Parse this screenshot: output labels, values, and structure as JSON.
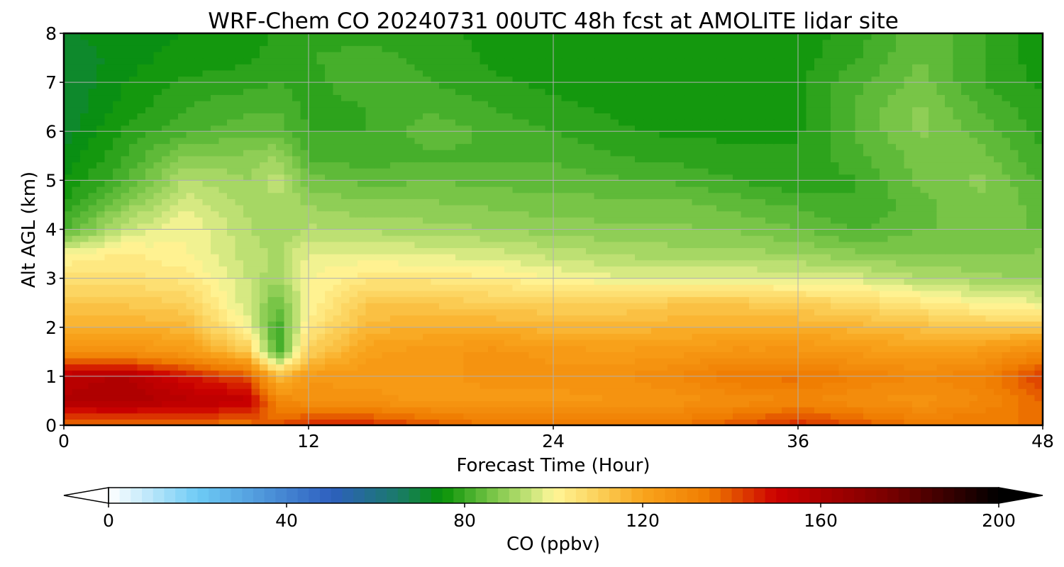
{
  "chart_data": {
    "type": "heatmap",
    "title": "WRF-Chem CO  20240731 00UTC 48h fcst at AMOLITE lidar site",
    "xlabel": "Forecast Time (Hour)",
    "ylabel": "Alt AGL (km)",
    "xlim": [
      0,
      48
    ],
    "ylim": [
      0,
      8
    ],
    "x_ticks": [
      "0",
      "12",
      "24",
      "36",
      "48"
    ],
    "y_ticks": [
      "0",
      "1",
      "2",
      "3",
      "4",
      "5",
      "6",
      "7",
      "8"
    ],
    "grid": true,
    "x": [
      0,
      3,
      6,
      9,
      10.5,
      12,
      15,
      18,
      21,
      24,
      27,
      30,
      33,
      36,
      39,
      42,
      45,
      48
    ],
    "y": [
      0,
      0.5,
      1,
      1.5,
      2,
      2.5,
      3,
      3.5,
      4,
      4.5,
      5,
      5.5,
      6,
      6.5,
      7,
      7.5,
      8
    ],
    "z": [
      [
        135,
        135,
        135,
        135,
        140,
        145,
        145,
        140,
        135,
        135,
        135,
        135,
        140,
        145,
        140,
        135,
        135,
        135
      ],
      [
        158,
        160,
        156,
        154,
        130,
        127,
        126,
        124,
        124,
        124,
        125,
        126,
        128,
        130,
        128,
        126,
        130,
        138
      ],
      [
        156,
        158,
        148,
        140,
        115,
        124,
        124,
        124,
        126,
        126,
        127,
        130,
        135,
        136,
        132,
        130,
        132,
        143
      ],
      [
        127,
        127,
        124,
        112,
        80,
        110,
        122,
        124,
        126,
        124,
        123,
        124,
        126,
        126,
        124,
        122,
        124,
        130
      ],
      [
        118,
        118,
        116,
        100,
        80,
        104,
        116,
        118,
        118,
        116,
        116,
        117,
        118,
        118,
        116,
        114,
        112,
        112
      ],
      [
        112,
        112,
        110,
        95,
        85,
        100,
        112,
        112,
        110,
        110,
        110,
        112,
        112,
        110,
        108,
        104,
        100,
        98
      ],
      [
        106,
        106,
        104,
        95,
        90,
        100,
        104,
        104,
        103,
        100,
        98,
        98,
        98,
        97,
        96,
        93,
        91,
        89
      ],
      [
        100,
        103,
        100,
        94,
        92,
        98,
        98,
        97,
        96,
        94,
        92,
        91,
        91,
        90,
        88,
        87,
        87,
        88
      ],
      [
        82,
        95,
        100,
        93,
        90,
        93,
        92,
        91,
        90,
        89,
        88,
        88,
        87,
        85,
        82,
        85,
        85,
        85
      ],
      [
        78,
        88,
        97,
        92,
        92,
        90,
        88,
        88,
        87,
        86,
        86,
        86,
        84,
        82,
        80,
        84,
        87,
        84
      ],
      [
        75,
        82,
        93,
        90,
        94,
        86,
        84,
        85,
        84,
        84,
        83,
        82,
        80,
        78,
        80,
        86,
        88,
        82
      ],
      [
        73,
        80,
        88,
        88,
        90,
        82,
        81,
        82,
        82,
        82,
        80,
        79,
        78,
        78,
        82,
        86,
        86,
        80
      ],
      [
        71,
        78,
        82,
        84,
        84,
        80,
        80,
        84,
        82,
        80,
        78,
        77,
        77,
        77,
        83,
        88,
        84,
        79
      ],
      [
        70,
        76,
        80,
        82,
        82,
        79,
        80,
        82,
        80,
        78,
        77,
        76,
        77,
        77,
        83,
        88,
        82,
        78
      ],
      [
        70,
        75,
        78,
        79,
        80,
        79,
        82,
        80,
        78,
        77,
        76,
        76,
        76,
        77,
        82,
        86,
        80,
        77
      ],
      [
        70,
        74,
        76,
        77,
        79,
        80,
        81,
        79,
        77,
        76,
        76,
        76,
        76,
        76,
        80,
        85,
        80,
        76
      ],
      [
        72,
        74,
        75,
        76,
        78,
        79,
        79,
        78,
        77,
        76,
        76,
        76,
        76,
        76,
        79,
        85,
        80,
        76
      ]
    ],
    "colorbar": {
      "label": "CO  (ppbv)",
      "ticks": [
        "0",
        "40",
        "80",
        "120",
        "160",
        "200"
      ],
      "tick_values": [
        0,
        40,
        80,
        120,
        160,
        200
      ],
      "range": [
        0,
        200
      ],
      "extend": "both",
      "stops": [
        {
          "v": 0,
          "c": "#ffffff"
        },
        {
          "v": 20,
          "c": "#6ecbf5"
        },
        {
          "v": 50,
          "c": "#2e5fbf"
        },
        {
          "v": 65,
          "c": "#1a7a6a"
        },
        {
          "v": 75,
          "c": "#079207"
        },
        {
          "v": 85,
          "c": "#6cc040"
        },
        {
          "v": 95,
          "c": "#c8e47a"
        },
        {
          "v": 100,
          "c": "#fff799"
        },
        {
          "v": 110,
          "c": "#fbd05a"
        },
        {
          "v": 120,
          "c": "#f9a51c"
        },
        {
          "v": 135,
          "c": "#ef7a00"
        },
        {
          "v": 150,
          "c": "#cc0000"
        },
        {
          "v": 175,
          "c": "#7a0000"
        },
        {
          "v": 200,
          "c": "#000000"
        }
      ],
      "levels": 80
    }
  }
}
